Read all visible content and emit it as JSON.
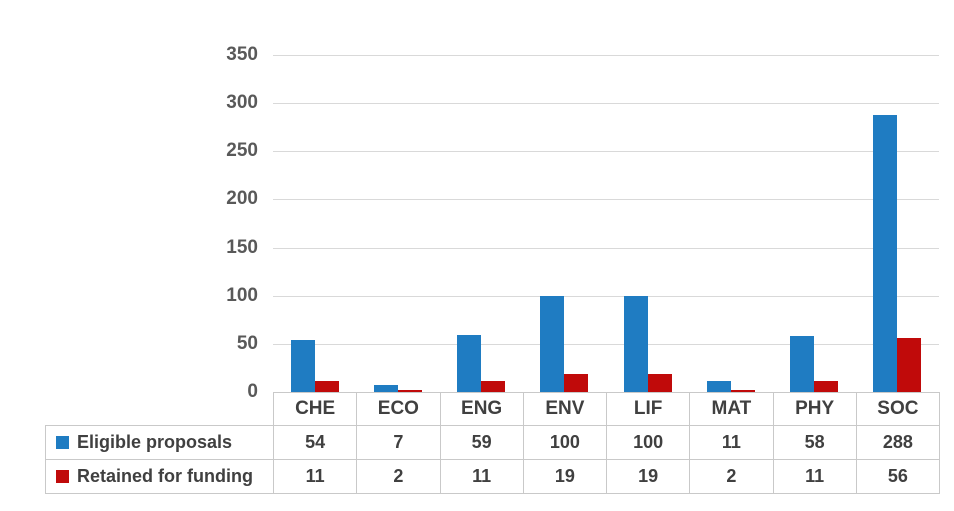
{
  "chart_data": {
    "type": "bar",
    "title": "",
    "xlabel": "",
    "ylabel": "",
    "categories": [
      "CHE",
      "ECO",
      "ENG",
      "ENV",
      "LIF",
      "MAT",
      "PHY",
      "SOC"
    ],
    "series": [
      {
        "name": "Eligible proposals",
        "key": "eligible-proposals",
        "color": "#1f7cc2",
        "values": [
          54,
          7,
          59,
          100,
          100,
          11,
          58,
          288
        ]
      },
      {
        "name": "Retained for funding",
        "key": "retained-for-funding",
        "color": "#c00a0a",
        "values": [
          11,
          2,
          11,
          19,
          19,
          2,
          11,
          56
        ]
      }
    ],
    "ylim": [
      0,
      350
    ],
    "ytick_step": 50,
    "ytick_labels": [
      "0",
      "50",
      "100",
      "150",
      "200",
      "250",
      "300",
      "350"
    ],
    "grid": true,
    "legend_position": "table-left"
  },
  "colors": {
    "gridline": "#d9d9d9",
    "axis_text": "#595959",
    "table_border": "#c9c9c9",
    "table_text": "#404040",
    "background": "#ffffff"
  }
}
